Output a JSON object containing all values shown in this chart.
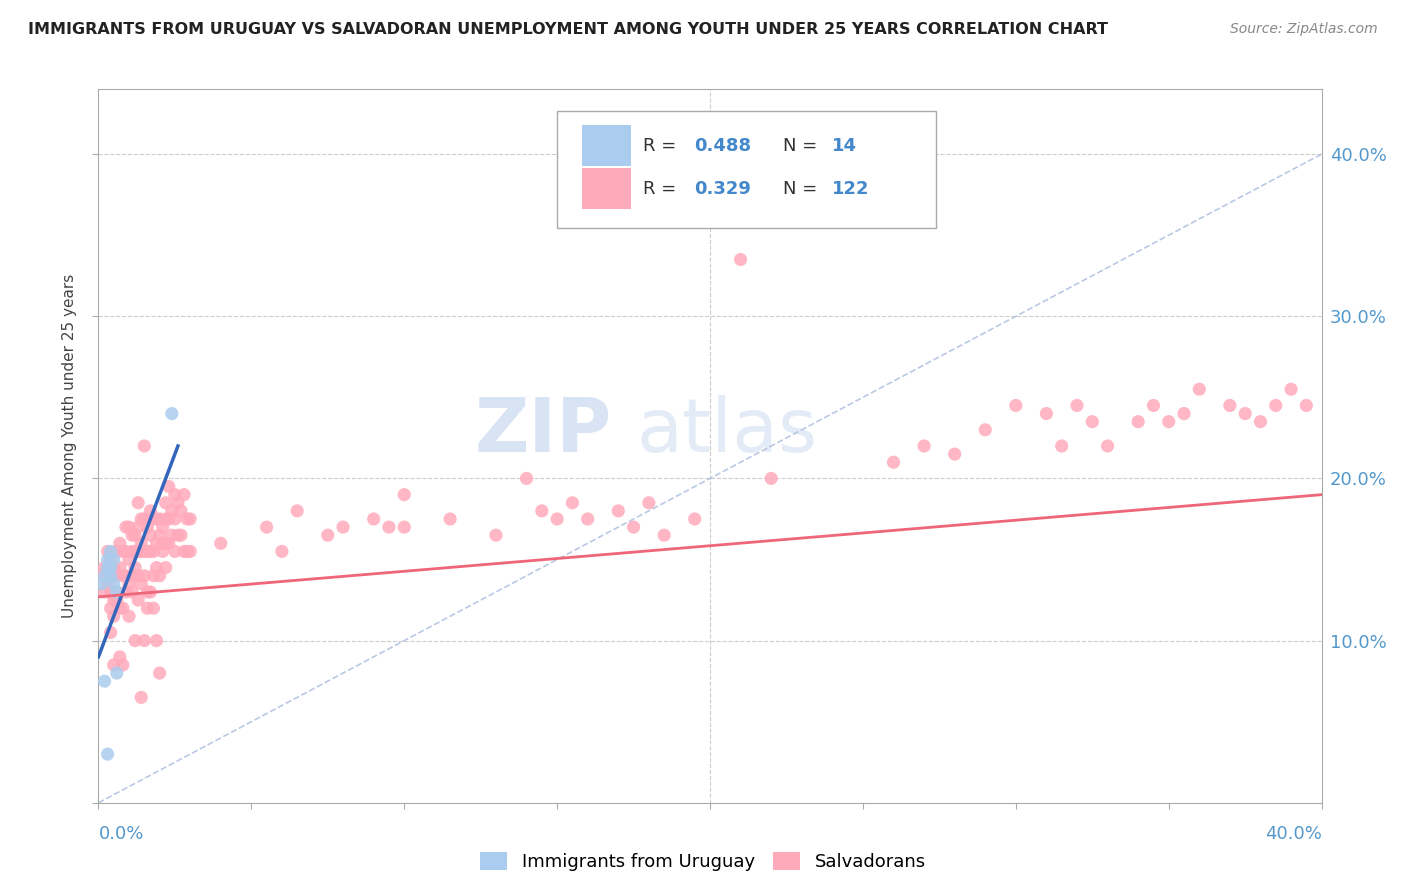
{
  "title": "IMMIGRANTS FROM URUGUAY VS SALVADORAN UNEMPLOYMENT AMONG YOUTH UNDER 25 YEARS CORRELATION CHART",
  "source": "Source: ZipAtlas.com",
  "ylabel": "Unemployment Among Youth under 25 years",
  "xlim": [
    0.0,
    0.4
  ],
  "ylim": [
    0.0,
    0.44
  ],
  "color_uruguay": "#aaccee",
  "color_salvadoran": "#ffaabb",
  "color_trend_uruguay": "#3366bb",
  "color_trend_salvadoran": "#ee6677",
  "color_diag": "#aabbdd",
  "uruguay_points": [
    [
      0.001,
      0.135
    ],
    [
      0.002,
      0.14
    ],
    [
      0.003,
      0.145
    ],
    [
      0.003,
      0.15
    ],
    [
      0.004,
      0.155
    ],
    [
      0.004,
      0.145
    ],
    [
      0.004,
      0.14
    ],
    [
      0.005,
      0.15
    ],
    [
      0.005,
      0.135
    ],
    [
      0.006,
      0.13
    ],
    [
      0.006,
      0.08
    ],
    [
      0.024,
      0.24
    ],
    [
      0.003,
      0.03
    ],
    [
      0.002,
      0.075
    ]
  ],
  "salvadoran_points": [
    [
      0.001,
      0.14
    ],
    [
      0.002,
      0.145
    ],
    [
      0.002,
      0.13
    ],
    [
      0.003,
      0.155
    ],
    [
      0.003,
      0.135
    ],
    [
      0.004,
      0.13
    ],
    [
      0.004,
      0.15
    ],
    [
      0.004,
      0.12
    ],
    [
      0.004,
      0.105
    ],
    [
      0.005,
      0.145
    ],
    [
      0.005,
      0.125
    ],
    [
      0.005,
      0.115
    ],
    [
      0.005,
      0.085
    ],
    [
      0.006,
      0.155
    ],
    [
      0.006,
      0.14
    ],
    [
      0.006,
      0.13
    ],
    [
      0.006,
      0.125
    ],
    [
      0.007,
      0.16
    ],
    [
      0.007,
      0.145
    ],
    [
      0.007,
      0.12
    ],
    [
      0.007,
      0.09
    ],
    [
      0.008,
      0.155
    ],
    [
      0.008,
      0.14
    ],
    [
      0.008,
      0.12
    ],
    [
      0.008,
      0.085
    ],
    [
      0.009,
      0.17
    ],
    [
      0.009,
      0.155
    ],
    [
      0.009,
      0.14
    ],
    [
      0.009,
      0.13
    ],
    [
      0.01,
      0.17
    ],
    [
      0.01,
      0.15
    ],
    [
      0.01,
      0.135
    ],
    [
      0.01,
      0.115
    ],
    [
      0.011,
      0.165
    ],
    [
      0.011,
      0.155
    ],
    [
      0.011,
      0.14
    ],
    [
      0.011,
      0.13
    ],
    [
      0.012,
      0.165
    ],
    [
      0.012,
      0.155
    ],
    [
      0.012,
      0.145
    ],
    [
      0.012,
      0.1
    ],
    [
      0.013,
      0.185
    ],
    [
      0.013,
      0.17
    ],
    [
      0.013,
      0.155
    ],
    [
      0.013,
      0.14
    ],
    [
      0.013,
      0.125
    ],
    [
      0.014,
      0.175
    ],
    [
      0.014,
      0.16
    ],
    [
      0.014,
      0.155
    ],
    [
      0.014,
      0.135
    ],
    [
      0.014,
      0.065
    ],
    [
      0.015,
      0.22
    ],
    [
      0.015,
      0.175
    ],
    [
      0.015,
      0.155
    ],
    [
      0.015,
      0.14
    ],
    [
      0.015,
      0.1
    ],
    [
      0.016,
      0.17
    ],
    [
      0.016,
      0.155
    ],
    [
      0.016,
      0.13
    ],
    [
      0.016,
      0.12
    ],
    [
      0.017,
      0.18
    ],
    [
      0.017,
      0.165
    ],
    [
      0.017,
      0.155
    ],
    [
      0.017,
      0.13
    ],
    [
      0.018,
      0.175
    ],
    [
      0.018,
      0.155
    ],
    [
      0.018,
      0.14
    ],
    [
      0.018,
      0.12
    ],
    [
      0.019,
      0.175
    ],
    [
      0.019,
      0.16
    ],
    [
      0.019,
      0.145
    ],
    [
      0.019,
      0.1
    ],
    [
      0.02,
      0.175
    ],
    [
      0.02,
      0.165
    ],
    [
      0.02,
      0.14
    ],
    [
      0.02,
      0.08
    ],
    [
      0.021,
      0.17
    ],
    [
      0.021,
      0.16
    ],
    [
      0.021,
      0.155
    ],
    [
      0.022,
      0.185
    ],
    [
      0.022,
      0.175
    ],
    [
      0.022,
      0.16
    ],
    [
      0.022,
      0.145
    ],
    [
      0.023,
      0.195
    ],
    [
      0.023,
      0.175
    ],
    [
      0.023,
      0.16
    ],
    [
      0.024,
      0.18
    ],
    [
      0.024,
      0.165
    ],
    [
      0.025,
      0.19
    ],
    [
      0.025,
      0.175
    ],
    [
      0.025,
      0.155
    ],
    [
      0.026,
      0.185
    ],
    [
      0.026,
      0.165
    ],
    [
      0.027,
      0.18
    ],
    [
      0.027,
      0.165
    ],
    [
      0.028,
      0.19
    ],
    [
      0.028,
      0.155
    ],
    [
      0.029,
      0.175
    ],
    [
      0.029,
      0.155
    ],
    [
      0.03,
      0.175
    ],
    [
      0.03,
      0.155
    ],
    [
      0.04,
      0.16
    ],
    [
      0.055,
      0.17
    ],
    [
      0.06,
      0.155
    ],
    [
      0.065,
      0.18
    ],
    [
      0.075,
      0.165
    ],
    [
      0.08,
      0.17
    ],
    [
      0.09,
      0.175
    ],
    [
      0.095,
      0.17
    ],
    [
      0.1,
      0.19
    ],
    [
      0.1,
      0.17
    ],
    [
      0.115,
      0.175
    ],
    [
      0.13,
      0.165
    ],
    [
      0.14,
      0.2
    ],
    [
      0.145,
      0.18
    ],
    [
      0.15,
      0.175
    ],
    [
      0.155,
      0.185
    ],
    [
      0.16,
      0.175
    ],
    [
      0.17,
      0.18
    ],
    [
      0.175,
      0.17
    ],
    [
      0.18,
      0.185
    ],
    [
      0.185,
      0.165
    ],
    [
      0.195,
      0.175
    ],
    [
      0.21,
      0.335
    ],
    [
      0.22,
      0.2
    ],
    [
      0.26,
      0.21
    ],
    [
      0.27,
      0.22
    ],
    [
      0.28,
      0.215
    ],
    [
      0.29,
      0.23
    ],
    [
      0.3,
      0.245
    ],
    [
      0.31,
      0.24
    ],
    [
      0.315,
      0.22
    ],
    [
      0.32,
      0.245
    ],
    [
      0.325,
      0.235
    ],
    [
      0.33,
      0.22
    ],
    [
      0.34,
      0.235
    ],
    [
      0.345,
      0.245
    ],
    [
      0.35,
      0.235
    ],
    [
      0.355,
      0.24
    ],
    [
      0.36,
      0.255
    ],
    [
      0.37,
      0.245
    ],
    [
      0.375,
      0.24
    ],
    [
      0.38,
      0.235
    ],
    [
      0.385,
      0.245
    ],
    [
      0.39,
      0.255
    ],
    [
      0.395,
      0.245
    ]
  ],
  "sal_trend_x": [
    0.0,
    0.4
  ],
  "sal_trend_y": [
    0.127,
    0.19
  ],
  "uru_trend_x": [
    0.0,
    0.026
  ],
  "uru_trend_y": [
    0.09,
    0.22
  ]
}
